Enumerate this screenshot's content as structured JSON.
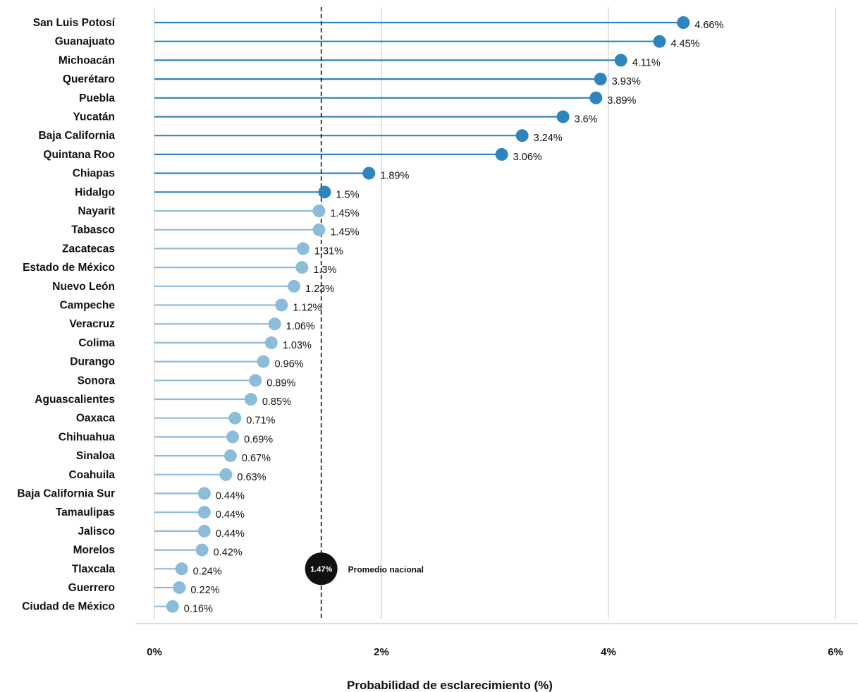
{
  "chart_data": {
    "type": "lollipop",
    "xlabel": "Probabilidad de esclarecimiento (%)",
    "xlim": [
      0,
      6
    ],
    "xticks": [
      0,
      2,
      4,
      6
    ],
    "xtick_labels": [
      "0%",
      "2%",
      "4%",
      "6%"
    ],
    "grid": true,
    "categories": [
      "San Luis Potosí",
      "Guanajuato",
      "Michoacán",
      "Querétaro",
      "Puebla",
      "Yucatán",
      "Baja California",
      "Quintana Roo",
      "Chiapas",
      "Hidalgo",
      "Nayarit",
      "Tabasco",
      "Zacatecas",
      "Estado de México",
      "Nuevo León",
      "Campeche",
      "Veracruz",
      "Colima",
      "Durango",
      "Sonora",
      "Aguascalientes",
      "Oaxaca",
      "Chihuahua",
      "Sinaloa",
      "Coahuila",
      "Baja California Sur",
      "Tamaulipas",
      "Jalisco",
      "Morelos",
      "Tlaxcala",
      "Guerrero",
      "Ciudad de México"
    ],
    "values": [
      4.66,
      4.45,
      4.11,
      3.93,
      3.89,
      3.6,
      3.24,
      3.06,
      1.89,
      1.5,
      1.45,
      1.45,
      1.31,
      1.3,
      1.23,
      1.12,
      1.06,
      1.03,
      0.96,
      0.89,
      0.85,
      0.71,
      0.69,
      0.67,
      0.63,
      0.44,
      0.44,
      0.44,
      0.42,
      0.24,
      0.22,
      0.16
    ],
    "value_labels": [
      "4.66%",
      "4.45%",
      "4.11%",
      "3.93%",
      "3.89%",
      "3.6%",
      "3.24%",
      "3.06%",
      "1.89%",
      "1.5%",
      "1.45%",
      "1.45%",
      "1.31%",
      "1.3%",
      "1.23%",
      "1.12%",
      "1.06%",
      "1.03%",
      "0.96%",
      "0.89%",
      "0.85%",
      "0.71%",
      "0.69%",
      "0.67%",
      "0.63%",
      "0.44%",
      "0.44%",
      "0.44%",
      "0.42%",
      "0.24%",
      "0.22%",
      "0.16%"
    ],
    "reference_line": {
      "value": 1.47,
      "value_label": "1.47%",
      "label": "Promedio nacional"
    },
    "colors": {
      "above_average": "#2e84bf",
      "below_average": "#8dbcda",
      "reference": "#111111",
      "grid": "#c8c8c8"
    }
  }
}
